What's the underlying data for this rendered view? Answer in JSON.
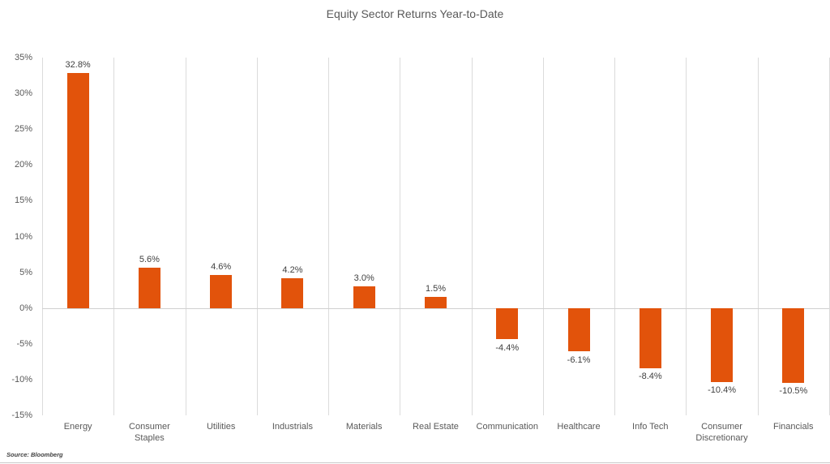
{
  "title": "Equity Sector Returns Year-to-Date",
  "source_note": "Source: Bloomberg",
  "colors": {
    "bar": "#e2530b",
    "gridline": "#dbdbdb",
    "zero_line": "#d0d0d0",
    "title_text": "#595959",
    "axis_text": "#595959",
    "data_label_text": "#3f3f3f"
  },
  "chart_data": {
    "type": "bar",
    "title": "Equity Sector Returns Year-to-Date",
    "categories": [
      "Energy",
      "Consumer Staples",
      "Utilities",
      "Industrials",
      "Materials",
      "Real Estate",
      "Communication",
      "Healthcare",
      "Info Tech",
      "Consumer Discretionary",
      "Financials"
    ],
    "values": [
      32.8,
      5.6,
      4.6,
      4.2,
      3.0,
      1.5,
      -4.4,
      -6.1,
      -8.4,
      -10.4,
      -10.5
    ],
    "data_labels": [
      "32.8%",
      "5.6%",
      "4.6%",
      "4.2%",
      "3.0%",
      "1.5%",
      "-4.4%",
      "-6.1%",
      "-8.4%",
      "-10.4%",
      "-10.5%"
    ],
    "xlabel": "",
    "ylabel": "",
    "ylim": [
      -15,
      35
    ],
    "y_ticks": [
      {
        "value": 35,
        "label": "35%"
      },
      {
        "value": 30,
        "label": "30%"
      },
      {
        "value": 25,
        "label": "25%"
      },
      {
        "value": 20,
        "label": "20%"
      },
      {
        "value": 15,
        "label": "15%"
      },
      {
        "value": 10,
        "label": "10%"
      },
      {
        "value": 5,
        "label": "5%"
      },
      {
        "value": 0,
        "label": "0%"
      },
      {
        "value": -5,
        "label": "-5%"
      },
      {
        "value": -10,
        "label": "-10%"
      },
      {
        "value": -15,
        "label": "-15%"
      }
    ],
    "grid": "vertical category separators; horizontal line at 0 only",
    "legend": "none",
    "bar_color": "#e2530b",
    "source": "Source: Bloomberg"
  }
}
